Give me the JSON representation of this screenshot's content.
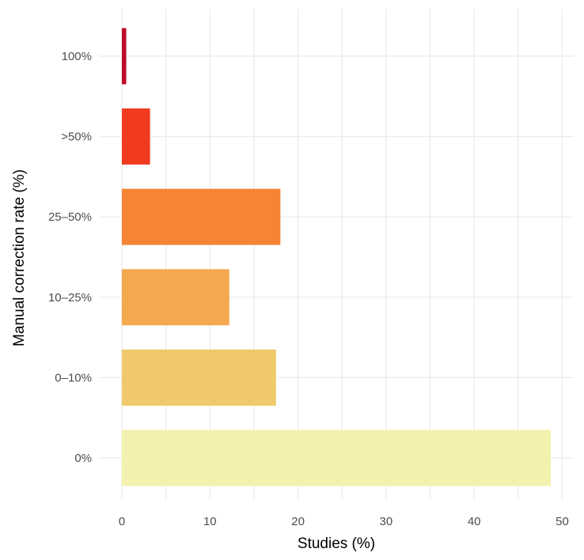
{
  "chart_data": {
    "type": "bar",
    "orientation": "horizontal",
    "categories": [
      "100%",
      ">50%",
      "25–50%",
      "10–25%",
      "0–10%",
      "0%"
    ],
    "values": [
      0.5,
      3.2,
      18.0,
      12.2,
      17.5,
      48.7
    ],
    "colors": [
      "#bd0b26",
      "#f03b21",
      "#f58434",
      "#f4a84f",
      "#efc96b",
      "#f2f1ad"
    ],
    "xlabel": "Studies (%)",
    "ylabel": "Manual correction rate (%)",
    "xlim": [
      0,
      51
    ],
    "xticks": [
      0,
      10,
      20,
      30,
      40,
      50
    ],
    "grid": true,
    "legend": "none"
  }
}
